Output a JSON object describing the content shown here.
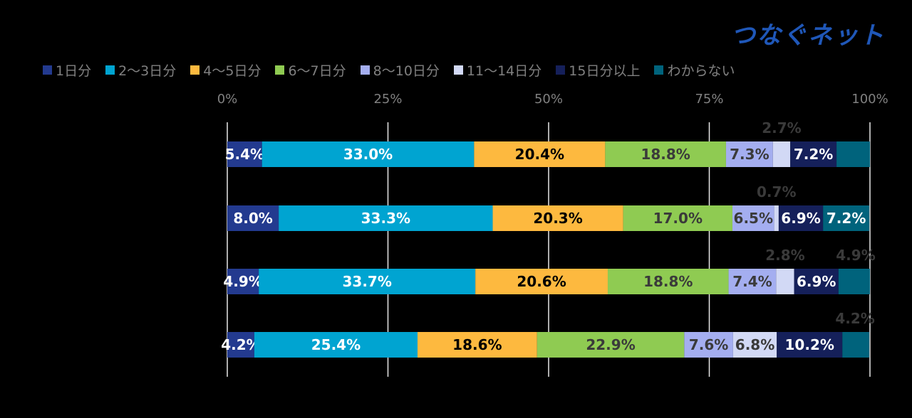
{
  "logo": {
    "text": "つなぐネット"
  },
  "chart_data": {
    "type": "bar",
    "orientation": "horizontal-stacked-100",
    "categories": [
      "",
      "",
      "",
      ""
    ],
    "xlim": [
      0,
      100
    ],
    "x_ticks": [
      "0%",
      "25%",
      "50%",
      "75%",
      "100%"
    ],
    "grid": true,
    "legend_position": "top",
    "series": [
      {
        "name": "1日分",
        "color": "#233a8f",
        "values": [
          5.4,
          8.0,
          4.9,
          4.2
        ],
        "labels": [
          "5.4%",
          "8.0%",
          "4.9%",
          "4.2%"
        ]
      },
      {
        "name": "2～3日分",
        "color": "#00a4d1",
        "values": [
          33.0,
          33.3,
          33.7,
          25.4
        ],
        "labels": [
          "33.0%",
          "33.3%",
          "33.7%",
          "25.4%"
        ]
      },
      {
        "name": "4～5日分",
        "color": "#fdb93f",
        "values": [
          20.4,
          20.3,
          20.6,
          18.6
        ],
        "labels": [
          "20.4%",
          "20.3%",
          "20.6%",
          "18.6%"
        ]
      },
      {
        "name": "6～7日分",
        "color": "#8fcb52",
        "values": [
          18.8,
          17.0,
          18.8,
          22.9
        ],
        "labels": [
          "18.8%",
          "17.0%",
          "18.8%",
          "22.9%"
        ]
      },
      {
        "name": "8～10日分",
        "color": "#a4aef0",
        "values": [
          7.3,
          6.5,
          7.4,
          7.6
        ],
        "labels": [
          "7.3%",
          "6.5%",
          "7.4%",
          "7.6%"
        ]
      },
      {
        "name": "11～14日分",
        "color": "#d2d9f5",
        "values": [
          2.7,
          0.7,
          2.8,
          6.8
        ],
        "labels": [
          "2.7%",
          "0.7%",
          "2.8%",
          "6.8%"
        ]
      },
      {
        "name": "15日分以上",
        "color": "#15205a",
        "values": [
          7.2,
          6.9,
          6.9,
          10.2
        ],
        "labels": [
          "7.2%",
          "6.9%",
          "6.9%",
          "10.2%"
        ]
      },
      {
        "name": "わからない",
        "color": "#00637c",
        "values": [
          5.2,
          7.2,
          4.9,
          4.2
        ],
        "labels": [
          "",
          "7.2%",
          "4.9%",
          "4.2%"
        ]
      }
    ]
  }
}
